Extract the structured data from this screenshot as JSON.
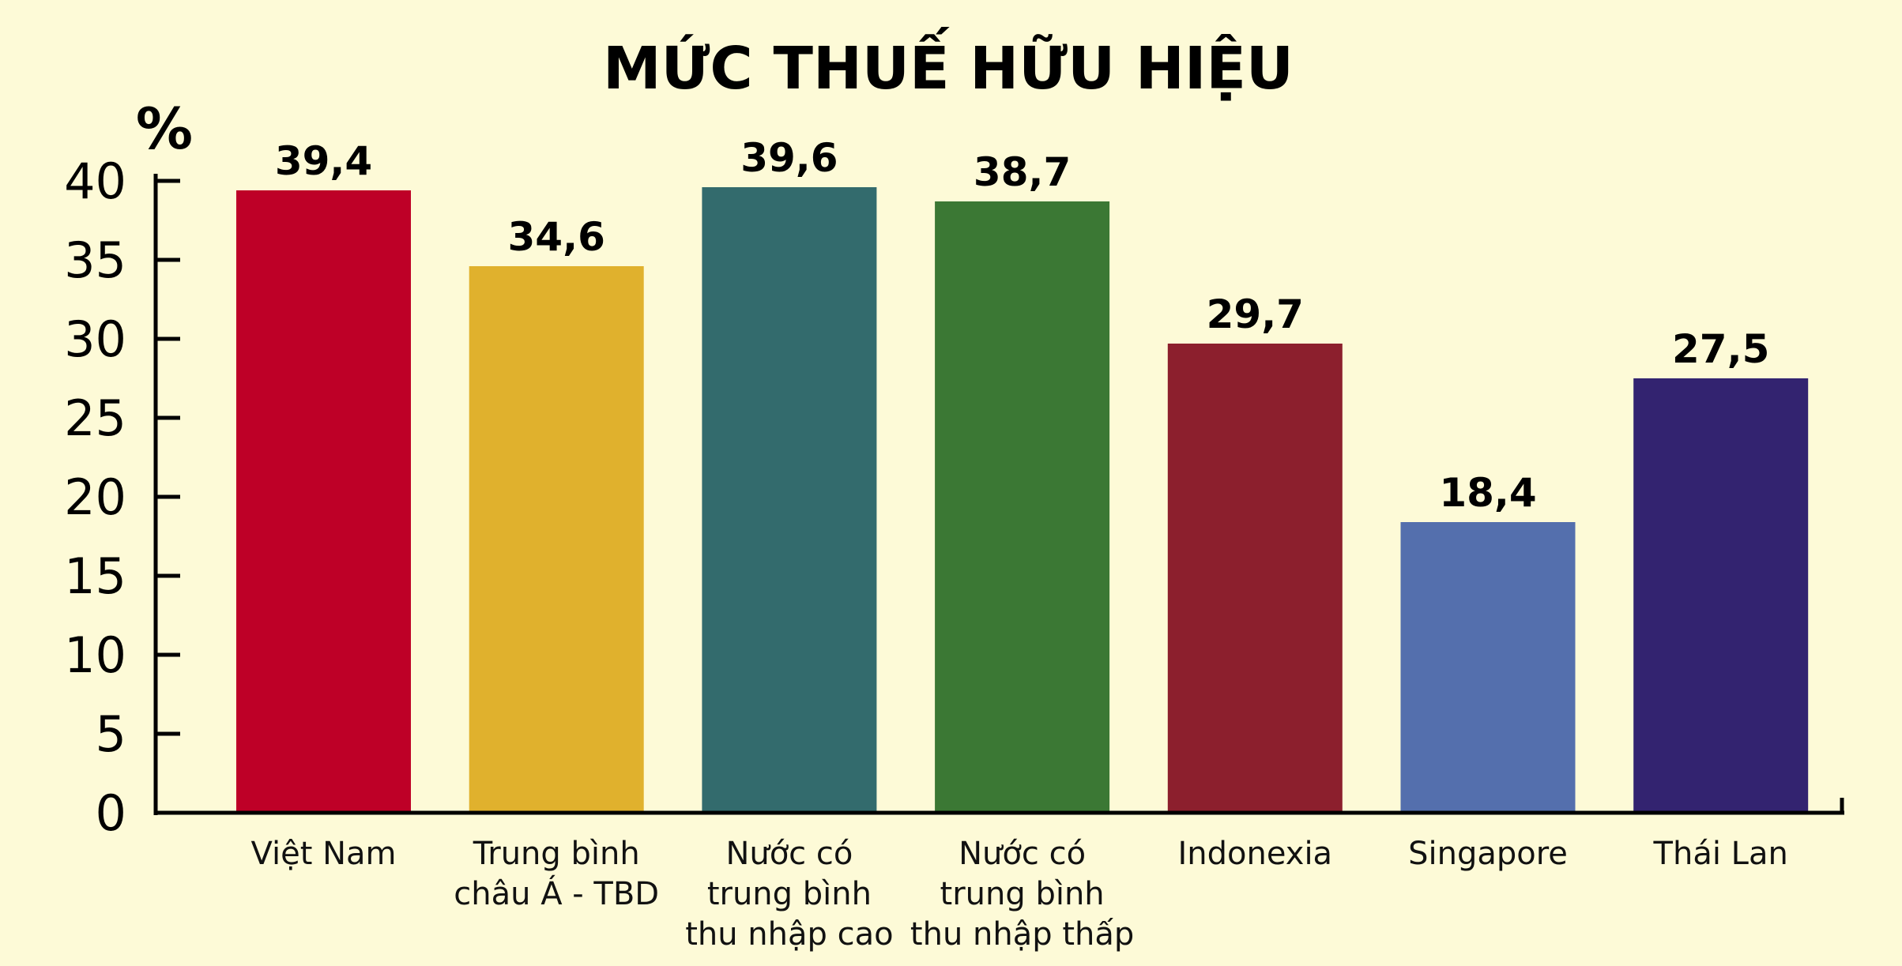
{
  "chart_data": {
    "type": "bar",
    "title": "MỨC THUẾ HỮU HIỆU",
    "ylabel": "%",
    "ylim": [
      0,
      40
    ],
    "yticks": [
      0,
      5,
      10,
      15,
      20,
      25,
      30,
      35,
      40
    ],
    "grid": false,
    "legend": "none",
    "categories": [
      [
        "Việt Nam"
      ],
      [
        "Trung bình",
        "châu Á - TBD"
      ],
      [
        "Nước có",
        "trung bình",
        "thu nhập cao"
      ],
      [
        "Nước có",
        "trung bình",
        "thu nhập thấp"
      ],
      [
        "Indonexia"
      ],
      [
        "Singapore"
      ],
      [
        "Thái Lan"
      ]
    ],
    "values": [
      39.4,
      34.6,
      39.6,
      38.7,
      29.7,
      18.4,
      27.5
    ],
    "value_labels": [
      "39,4",
      "34,6",
      "39,6",
      "38,7",
      "29,7",
      "18,4",
      "27,5"
    ],
    "colors": [
      "#be0027",
      "#e0b12d",
      "#336b6d",
      "#3b7834",
      "#8c1f2d",
      "#546fad",
      "#332370"
    ]
  }
}
